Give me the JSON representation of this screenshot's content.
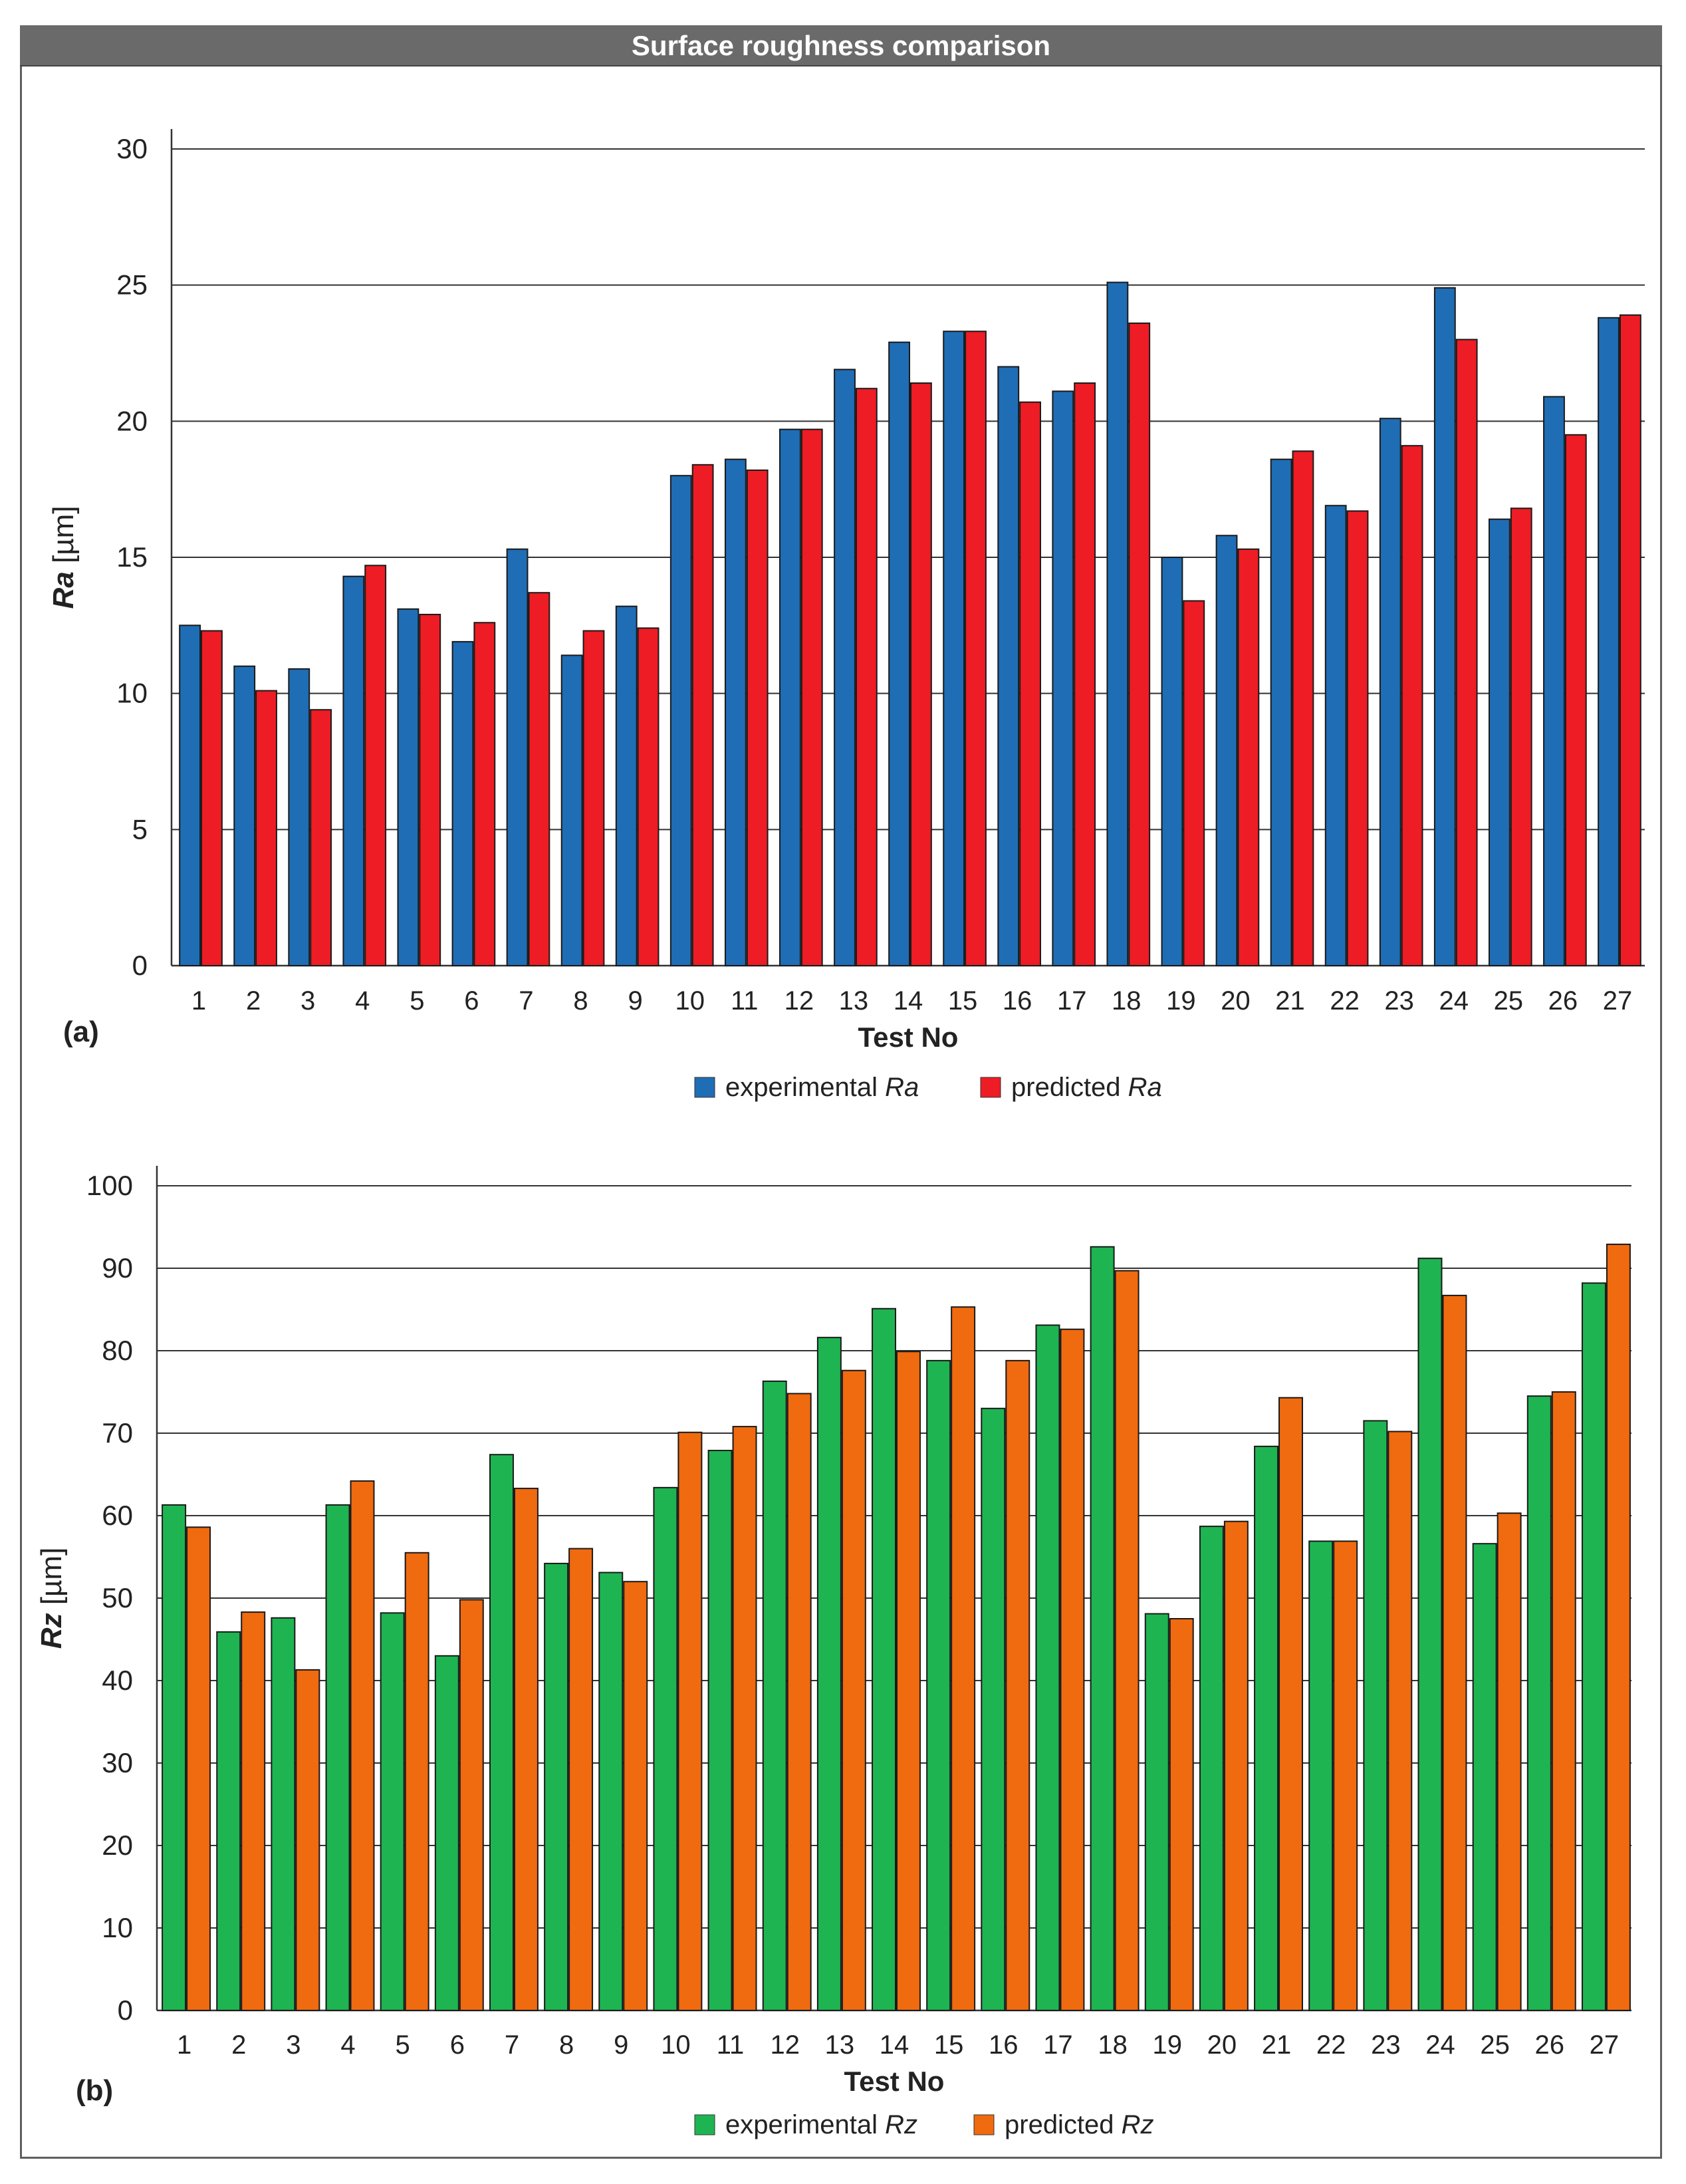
{
  "title": "Surface roughness comparison",
  "chart_data": [
    {
      "type": "bar",
      "panel": "(a)",
      "categories": [
        "1",
        "2",
        "3",
        "4",
        "5",
        "6",
        "7",
        "8",
        "9",
        "10",
        "11",
        "12",
        "13",
        "14",
        "15",
        "16",
        "17",
        "18",
        "19",
        "20",
        "21",
        "22",
        "23",
        "24",
        "25",
        "26",
        "27"
      ],
      "series": [
        {
          "name": "experimental",
          "name_italic": "Ra",
          "color": "#1f6db5",
          "values": [
            12.5,
            11.0,
            10.9,
            14.3,
            13.1,
            11.9,
            15.3,
            11.4,
            13.2,
            18.0,
            18.6,
            19.7,
            21.9,
            22.9,
            23.3,
            22.0,
            21.1,
            25.1,
            15.0,
            15.8,
            18.6,
            16.9,
            20.1,
            24.9,
            16.4,
            20.9,
            23.8
          ]
        },
        {
          "name": "predicted",
          "name_italic": "Ra",
          "color": "#ee1c24",
          "values": [
            12.3,
            10.1,
            9.4,
            14.7,
            12.9,
            12.6,
            13.7,
            12.3,
            12.4,
            18.4,
            18.2,
            19.7,
            21.2,
            21.4,
            23.3,
            20.7,
            21.4,
            23.6,
            13.4,
            15.3,
            18.9,
            16.7,
            19.1,
            23.0,
            16.8,
            19.5,
            23.9
          ]
        }
      ],
      "ylabel_italic": "Ra",
      "ylabel_unit": " [µm]",
      "xlabel": "Test No",
      "ylim": [
        0,
        30
      ],
      "yticks": [
        "0",
        "5",
        "10",
        "15",
        "20",
        "25",
        "30"
      ],
      "grid": true,
      "legend": "bottom-center"
    },
    {
      "type": "bar",
      "panel": "(b)",
      "categories": [
        "1",
        "2",
        "3",
        "4",
        "5",
        "6",
        "7",
        "8",
        "9",
        "10",
        "11",
        "12",
        "13",
        "14",
        "15",
        "16",
        "17",
        "18",
        "19",
        "20",
        "21",
        "22",
        "23",
        "24",
        "25",
        "26",
        "27"
      ],
      "series": [
        {
          "name": "experimental",
          "name_italic": "Rz",
          "color": "#1fb452",
          "values": [
            61.3,
            45.9,
            47.6,
            61.3,
            48.2,
            43.0,
            67.4,
            54.2,
            53.1,
            63.4,
            67.9,
            76.3,
            81.6,
            85.1,
            78.8,
            73.0,
            83.1,
            92.6,
            48.1,
            58.7,
            68.4,
            56.9,
            71.5,
            91.2,
            56.6,
            74.5,
            88.2
          ]
        },
        {
          "name": "predicted",
          "name_italic": "Rz",
          "color": "#f06a0f",
          "values": [
            58.6,
            48.3,
            41.3,
            64.2,
            55.5,
            49.8,
            63.3,
            56.0,
            52.0,
            70.1,
            70.8,
            74.8,
            77.6,
            79.9,
            85.3,
            78.8,
            82.6,
            89.7,
            47.5,
            59.3,
            74.3,
            56.9,
            70.2,
            86.7,
            60.3,
            75.0,
            92.9
          ]
        }
      ],
      "ylabel_italic": "Rz",
      "ylabel_unit": " [µm]",
      "xlabel": "Test No",
      "ylim": [
        0,
        100
      ],
      "yticks": [
        "0",
        "10",
        "20",
        "30",
        "40",
        "50",
        "60",
        "70",
        "80",
        "90",
        "100"
      ],
      "grid": true,
      "legend": "bottom-center"
    }
  ]
}
